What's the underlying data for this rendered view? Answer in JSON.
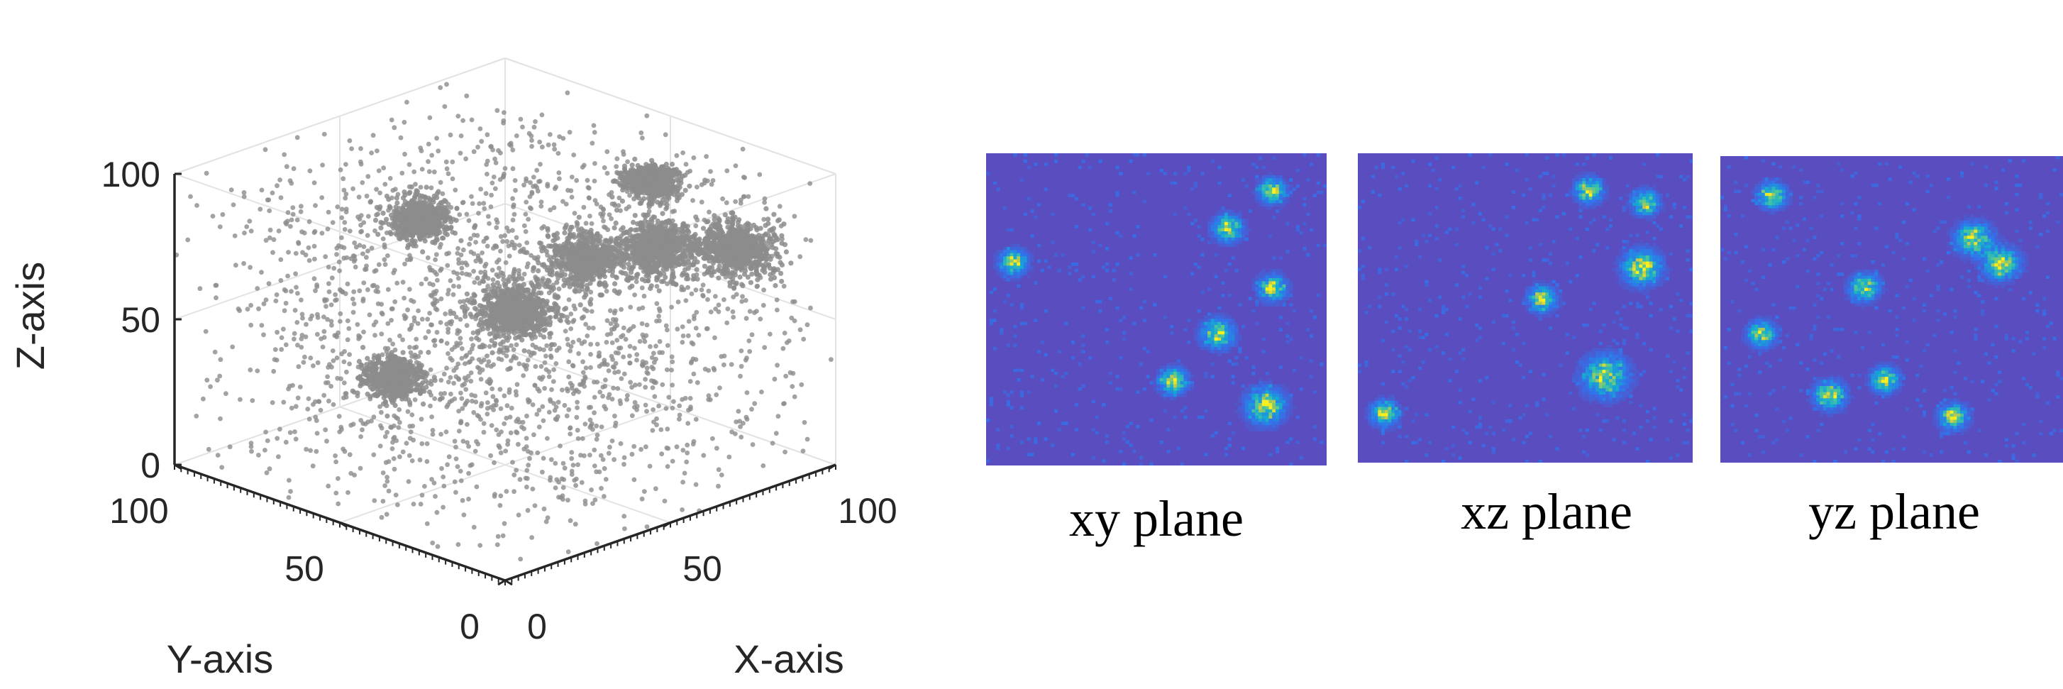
{
  "chart_data": [
    {
      "type": "scatter",
      "projection": "3d",
      "xlabel": "X-axis",
      "ylabel": "Y-axis",
      "zlabel": "Z-axis",
      "xlim": [
        0,
        100
      ],
      "ylim": [
        0,
        100
      ],
      "zlim": [
        0,
        100
      ],
      "x_ticks": [
        "0",
        "50",
        "100"
      ],
      "y_ticks": [
        "0",
        "50",
        "100"
      ],
      "z_ticks": [
        "0",
        "50",
        "100"
      ],
      "grid": true,
      "point_color": "#8c8c8c",
      "clusters": [
        {
          "center": [
            72,
            28,
            98
          ],
          "spread": 3,
          "count": 650
        },
        {
          "center": [
            80,
            10,
            78
          ],
          "spread": 4,
          "count": 750
        },
        {
          "center": [
            66,
            20,
            80
          ],
          "spread": 4,
          "count": 750
        },
        {
          "center": [
            58,
            34,
            74
          ],
          "spread": 4,
          "count": 650
        },
        {
          "center": [
            36,
            62,
            85
          ],
          "spread": 3,
          "count": 650
        },
        {
          "center": [
            49,
            46,
            55
          ],
          "spread": 4,
          "count": 700
        },
        {
          "center": [
            48,
            82,
            18
          ],
          "spread": 3,
          "count": 600
        }
      ],
      "background_points": 2200
    },
    {
      "type": "heatmap",
      "title": "xy plane",
      "colormap": "parula",
      "background_color": "#5a4dbf",
      "spots": [
        {
          "x": 8,
          "y": 65,
          "s": 2.6
        },
        {
          "x": 71,
          "y": 76,
          "s": 2.7
        },
        {
          "x": 84,
          "y": 88,
          "s": 2.5
        },
        {
          "x": 84,
          "y": 57,
          "s": 2.6
        },
        {
          "x": 68,
          "y": 42,
          "s": 3.0
        },
        {
          "x": 55,
          "y": 27,
          "s": 2.6
        },
        {
          "x": 82,
          "y": 19,
          "s": 3.6
        }
      ]
    },
    {
      "type": "heatmap",
      "title": "xz plane",
      "colormap": "parula",
      "background_color": "#5a4dbf",
      "spots": [
        {
          "x": 8,
          "y": 16,
          "s": 2.6
        },
        {
          "x": 55,
          "y": 53,
          "s": 2.6
        },
        {
          "x": 69,
          "y": 88,
          "s": 2.6
        },
        {
          "x": 86,
          "y": 84,
          "s": 2.5
        },
        {
          "x": 85,
          "y": 63,
          "s": 3.6
        },
        {
          "x": 74,
          "y": 28,
          "s": 4.2
        }
      ]
    },
    {
      "type": "heatmap",
      "title": "yz plane",
      "colormap": "parula",
      "background_color": "#5a4dbf",
      "spots": [
        {
          "x": 15,
          "y": 87,
          "s": 2.6
        },
        {
          "x": 74,
          "y": 73,
          "s": 3.3
        },
        {
          "x": 82,
          "y": 65,
          "s": 3.3
        },
        {
          "x": 42,
          "y": 57,
          "s": 2.7
        },
        {
          "x": 12,
          "y": 42,
          "s": 2.6
        },
        {
          "x": 32,
          "y": 22,
          "s": 2.9
        },
        {
          "x": 48,
          "y": 27,
          "s": 2.6
        },
        {
          "x": 68,
          "y": 15,
          "s": 2.6
        }
      ]
    }
  ]
}
